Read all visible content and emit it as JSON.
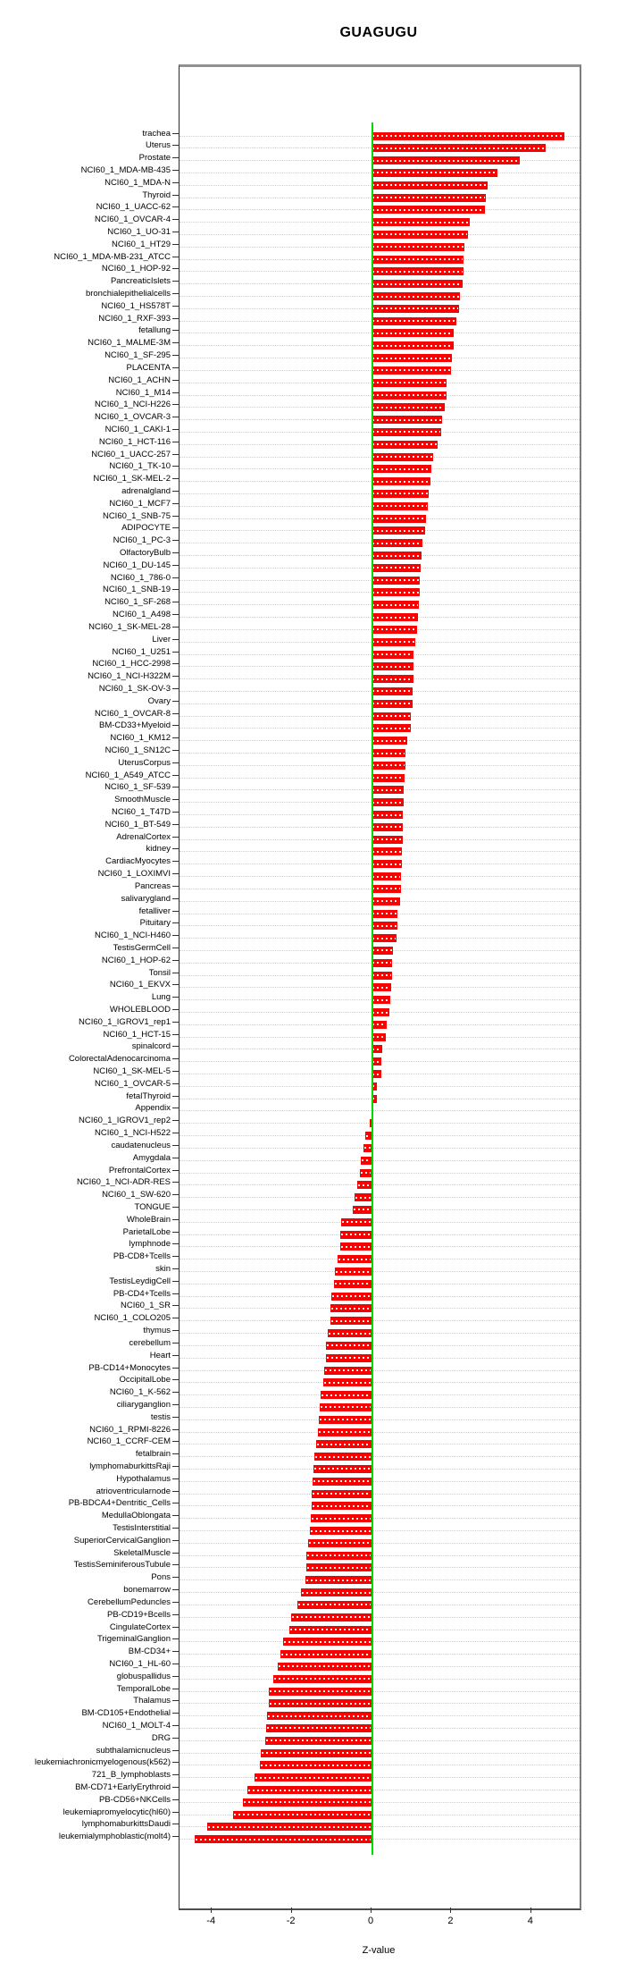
{
  "chart_data": {
    "type": "bar",
    "orientation": "horizontal",
    "title": "GUAGUGU",
    "xlabel": "Z-value",
    "xlim": [
      -4.8,
      5.2
    ],
    "xticks": [
      -4,
      -2,
      0,
      2,
      4
    ],
    "grid": "dotted horizontal line per category",
    "legend": "none",
    "bar_color": "#fb0000",
    "zero_line_color": "#00dc00",
    "categories": [
      "trachea",
      "Uterus",
      "Prostate",
      "NCI60_1_MDA-MB-435",
      "NCI60_1_MDA-N",
      "Thyroid",
      "NCI60_1_UACC-62",
      "NCI60_1_OVCAR-4",
      "NCI60_1_UO-31",
      "NCI60_1_HT29",
      "NCI60_1_MDA-MB-231_ATCC",
      "NCI60_1_HOP-92",
      "PancreaticIslets",
      "bronchialepithelialcells",
      "NCI60_1_HS578T",
      "NCI60_1_RXF-393",
      "fetallung",
      "NCI60_1_MALME-3M",
      "NCI60_1_SF-295",
      "PLACENTA",
      "NCI60_1_ACHN",
      "NCI60_1_M14",
      "NCI60_1_NCI-H226",
      "NCI60_1_OVCAR-3",
      "NCI60_1_CAKI-1",
      "NCI60_1_HCT-116",
      "NCI60_1_UACC-257",
      "NCI60_1_TK-10",
      "NCI60_1_SK-MEL-2",
      "adrenalgland",
      "NCI60_1_MCF7",
      "NCI60_1_SNB-75",
      "ADIPOCYTE",
      "NCI60_1_PC-3",
      "OlfactoryBulb",
      "NCI60_1_DU-145",
      "NCI60_1_786-0",
      "NCI60_1_SNB-19",
      "NCI60_1_SF-268",
      "NCI60_1_A498",
      "NCI60_1_SK-MEL-28",
      "Liver",
      "NCI60_1_U251",
      "NCI60_1_HCC-2998",
      "NCI60_1_NCI-H322M",
      "NCI60_1_SK-OV-3",
      "Ovary",
      "NCI60_1_OVCAR-8",
      "BM-CD33+Myeloid",
      "NCI60_1_KM12",
      "NCI60_1_SN12C",
      "UterusCorpus",
      "NCI60_1_A549_ATCC",
      "NCI60_1_SF-539",
      "SmoothMuscle",
      "NCI60_1_T47D",
      "NCI60_1_BT-549",
      "AdrenalCortex",
      "kidney",
      "CardiacMyocytes",
      "NCI60_1_LOXIMVI",
      "Pancreas",
      "salivarygland",
      "fetalliver",
      "Pituitary",
      "NCI60_1_NCI-H460",
      "TestisGermCell",
      "NCI60_1_HOP-62",
      "Tonsil",
      "NCI60_1_EKVX",
      "Lung",
      "WHOLEBLOOD",
      "NCI60_1_IGROV1_rep1",
      "NCI60_1_HCT-15",
      "spinalcord",
      "ColorectalAdenocarcinoma",
      "NCI60_1_SK-MEL-5",
      "NCI60_1_OVCAR-5",
      "fetalThyroid",
      "Appendix",
      "NCI60_1_IGROV1_rep2",
      "NCI60_1_NCI-H522",
      "caudatenucleus",
      "Amygdala",
      "PrefrontalCortex",
      "NCI60_1_NCI-ADR-RES",
      "NCI60_1_SW-620",
      "TONGUE",
      "WholeBrain",
      "ParietalLobe",
      "lymphnode",
      "PB-CD8+Tcells",
      "skin",
      "TestisLeydigCell",
      "PB-CD4+Tcells",
      "NCI60_1_SR",
      "NCI60_1_COLO205",
      "thymus",
      "cerebellum",
      "Heart",
      "PB-CD14+Monocytes",
      "OccipitalLobe",
      "NCI60_1_K-562",
      "ciliaryganglion",
      "testis",
      "NCI60_1_RPMI-8226",
      "NCI60_1_CCRF-CEM",
      "fetalbrain",
      "lymphomaburkittsRaji",
      "Hypothalamus",
      "atrioventricularnode",
      "PB-BDCA4+Dentritic_Cells",
      "MedullaOblongata",
      "TestisInterstitial",
      "SuperiorCervicalGanglion",
      "SkeletalMuscle",
      "TestisSeminiferousTubule",
      "Pons",
      "bonemarrow",
      "CerebellumPeduncles",
      "PB-CD19+Bcells",
      "CingulateCortex",
      "TrigeminalGanglion",
      "BM-CD34+",
      "NCI60_1_HL-60",
      "globuspallidus",
      "TemporalLobe",
      "Thalamus",
      "BM-CD105+Endothelial",
      "NCI60_1_MOLT-4",
      "DRG",
      "subthalamicnucleus",
      "leukemiachronicmyelogenous(k562)",
      "721_B_lymphoblasts",
      "BM-CD71+EarlyErythroid",
      "PB-CD56+NKCells",
      "leukemiapromyelocytic(hl60)",
      "lymphomaburkittsDaudi",
      "leukemialymphoblastic(molt4)"
    ],
    "values": [
      4.84,
      4.37,
      3.71,
      3.16,
      2.91,
      2.87,
      2.83,
      2.47,
      2.42,
      2.32,
      2.3,
      2.3,
      2.29,
      2.22,
      2.19,
      2.12,
      2.06,
      2.05,
      2.02,
      1.99,
      1.89,
      1.88,
      1.83,
      1.76,
      1.75,
      1.66,
      1.54,
      1.5,
      1.48,
      1.44,
      1.4,
      1.37,
      1.34,
      1.27,
      1.25,
      1.22,
      1.21,
      1.2,
      1.19,
      1.16,
      1.13,
      1.09,
      1.06,
      1.06,
      1.05,
      1.04,
      1.03,
      0.99,
      0.98,
      0.89,
      0.86,
      0.85,
      0.82,
      0.81,
      0.8,
      0.79,
      0.78,
      0.78,
      0.77,
      0.76,
      0.73,
      0.73,
      0.72,
      0.65,
      0.64,
      0.63,
      0.53,
      0.52,
      0.51,
      0.5,
      0.48,
      0.44,
      0.38,
      0.35,
      0.26,
      0.25,
      0.24,
      0.14,
      0.13,
      0.02,
      -0.05,
      -0.15,
      -0.21,
      -0.27,
      -0.29,
      -0.36,
      -0.42,
      -0.48,
      -0.76,
      -0.78,
      -0.79,
      -0.85,
      -0.91,
      -0.94,
      -1.0,
      -1.02,
      -1.04,
      -1.1,
      -1.14,
      -1.15,
      -1.18,
      -1.2,
      -1.28,
      -1.3,
      -1.33,
      -1.35,
      -1.38,
      -1.43,
      -1.45,
      -1.48,
      -1.49,
      -1.51,
      -1.52,
      -1.55,
      -1.59,
      -1.63,
      -1.64,
      -1.65,
      -1.76,
      -1.85,
      -2.02,
      -2.06,
      -2.21,
      -2.29,
      -2.36,
      -2.45,
      -2.57,
      -2.58,
      -2.62,
      -2.64,
      -2.67,
      -2.78,
      -2.79,
      -2.92,
      -3.1,
      -3.23,
      -3.47,
      -4.11,
      -4.44
    ]
  }
}
